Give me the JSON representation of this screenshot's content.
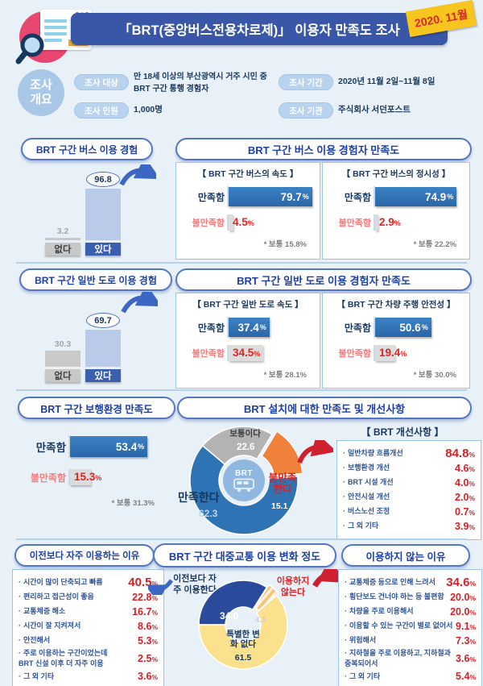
{
  "unit": "%",
  "header": {
    "title": "「BRT(중앙버스전용차로제)」 이용자 만족도 조사",
    "badge": "2020. 11월",
    "overview_label": "조사\n개요",
    "fields": [
      {
        "label": "조사 대상",
        "value": "만 18세 이상의 부산광역시 거주 시민 중\nBRT 구간 통행 경험자"
      },
      {
        "label": "조사 인원",
        "value": "1,000명"
      },
      {
        "label": "조사 기간",
        "value": "2020년 11월 2일~11월 8일"
      },
      {
        "label": "조사 기관",
        "value": "주식회사 서던포스트"
      }
    ]
  },
  "sections": {
    "bus_sat_title": "BRT 구간 버스 이용 경험자 만족도",
    "road_sat_title": "BRT 구간 일반 도로 이용 경험자 만족도",
    "install_title": "BRT 설치에 대한 만족도 및 개선사항",
    "center_label": "BRT"
  },
  "chart_data": [
    {
      "id": "bus_experience",
      "type": "bar",
      "title": "BRT 구간 버스 이용 경험",
      "categories": [
        "없다",
        "있다"
      ],
      "values": [
        3.2,
        96.8
      ],
      "ylim": [
        0,
        100
      ]
    },
    {
      "id": "bus_speed",
      "type": "bar",
      "title": "【 BRT 구간 버스의 속도 】",
      "categories": [
        "만족함",
        "불만족함"
      ],
      "values": [
        79.7,
        4.5
      ],
      "note_prefix": "* 보통",
      "neutral": 15.8
    },
    {
      "id": "bus_punctuality",
      "type": "bar",
      "title": "【 BRT 구간 버스의 정시성 】",
      "categories": [
        "만족함",
        "불만족함"
      ],
      "values": [
        74.9,
        2.9
      ],
      "note_prefix": "* 보통",
      "neutral": 22.2
    },
    {
      "id": "road_experience",
      "type": "bar",
      "title": "BRT 구간 일반 도로 이용 경험",
      "categories": [
        "없다",
        "있다"
      ],
      "values": [
        30.3,
        69.7
      ],
      "ylim": [
        0,
        100
      ]
    },
    {
      "id": "road_speed",
      "type": "bar",
      "title": "【 BRT 구간 일반 도로 속도 】",
      "categories": [
        "만족함",
        "불만족함"
      ],
      "values": [
        37.4,
        34.5
      ],
      "note_prefix": "* 보통",
      "neutral": 28.1
    },
    {
      "id": "driving_safety",
      "type": "bar",
      "title": "【 BRT 구간 차량 주행 안전성 】",
      "categories": [
        "만족함",
        "불만족함"
      ],
      "values": [
        50.6,
        19.4
      ],
      "note_prefix": "* 보통",
      "neutral": 30.0
    },
    {
      "id": "walking_env",
      "type": "bar",
      "title": "BRT 구간 보행환경 만족도",
      "categories": [
        "만족함",
        "불만족함"
      ],
      "values": [
        53.4,
        15.3
      ],
      "note_prefix": "* 보통",
      "neutral": 31.3
    },
    {
      "id": "installation_satisfaction",
      "type": "pie",
      "title": "BRT 설치에 대한 만족도",
      "labels": [
        "만족한다",
        "보통이다",
        "불만족한다"
      ],
      "values": [
        62.3,
        22.6,
        15.1
      ]
    },
    {
      "id": "improvements",
      "type": "table",
      "title": "【 BRT 개선사항 】",
      "categories": [
        "일반차량 흐름개선",
        "보행환경 개선",
        "BRT 시설 개선",
        "안전시설 개선",
        "버스노선 조정",
        "그 외 기타"
      ],
      "values": [
        84.8,
        4.6,
        4.0,
        2.0,
        0.7,
        3.9
      ]
    },
    {
      "id": "usage_change",
      "type": "pie",
      "title": "BRT 구간 대중교통 이용 변화 정도",
      "labels": [
        "이전보다 자주 이용한다",
        "특별한 변화 없다",
        "이용하지 않는다"
      ],
      "values": [
        34.0,
        61.5,
        4.5
      ]
    },
    {
      "id": "reasons_more_use",
      "type": "table",
      "title": "이전보다 자주 이용하는 이유",
      "categories": [
        "시간이 많이 단축되고 빠름",
        "편리하고 접근성이 좋음",
        "교통체증 해소",
        "시간이 잘 지켜져서",
        "안전해서",
        "주로 이용하는 구간이었는데\nBRT 신설 이후 더 자주 이용",
        "그 외 기타"
      ],
      "values": [
        40.5,
        22.8,
        16.7,
        8.6,
        5.3,
        2.5,
        3.6
      ]
    },
    {
      "id": "reasons_not_use",
      "type": "table",
      "title": "이용하지 않는 이유",
      "categories": [
        "교통체증 등으로 인해 느려서",
        "횡단보도 건너야 하는 등 불편함",
        "차량을 주로 이용해서",
        "이용할 수 있는 구간이 별로 없어서",
        "위험해서",
        "지하철을 주로 이용하고, 지하철과\n중복되어서",
        "그 외 기타"
      ],
      "values": [
        34.6,
        20.0,
        20.0,
        9.1,
        7.3,
        3.6,
        5.4
      ]
    }
  ],
  "colors": {
    "header_bar": "#3a57a7",
    "badge": "#f7c51e",
    "badge_text": "#d8262b",
    "bar_blue": "#2e74b5",
    "bar_gray": "#dcdcdc",
    "value_red": "#d61f26",
    "donut_blue": "#2e74b5",
    "donut_gray": "#b3b3b3",
    "donut_orange": "#f0813a",
    "donut_navy": "#2a4a9b",
    "donut_yellow": "#fbe18e",
    "background": "#e9f1f8"
  }
}
